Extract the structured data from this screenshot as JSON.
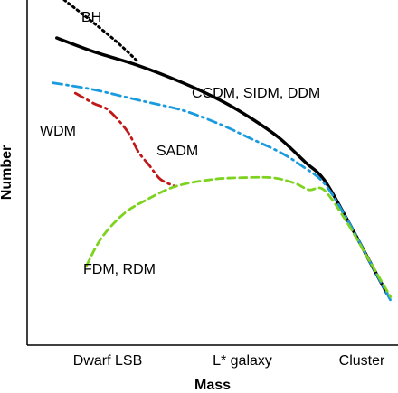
{
  "chart_data": {
    "type": "line",
    "title": "",
    "xlabel": "Mass",
    "ylabel": "Number",
    "x_tick_labels": [
      "Dwarf LSB",
      "L* galaxy",
      "Cluster"
    ],
    "xlim": [
      0,
      1
    ],
    "ylim": [
      0,
      1
    ],
    "grid": false,
    "series": [
      {
        "name": "BH",
        "style": "dotted",
        "color": "#000000",
        "x": [
          0.1,
          0.16,
          0.24,
          0.3
        ],
        "y": [
          1.0,
          0.95,
          0.88,
          0.82
        ]
      },
      {
        "name": "CCDM, SIDM, DDM",
        "style": "solid",
        "color": "#000000",
        "x": [
          0.08,
          0.18,
          0.3,
          0.42,
          0.52,
          0.6,
          0.68,
          0.75,
          0.8,
          0.86,
          0.92,
          0.97
        ],
        "y": [
          0.89,
          0.85,
          0.81,
          0.76,
          0.71,
          0.66,
          0.6,
          0.53,
          0.48,
          0.37,
          0.25,
          0.15
        ]
      },
      {
        "name": "SADM",
        "style": "dash-dot",
        "color": "#1a9be0",
        "x": [
          0.07,
          0.18,
          0.3,
          0.42,
          0.52,
          0.6,
          0.68,
          0.74,
          0.8,
          0.86,
          0.92,
          0.98
        ],
        "y": [
          0.76,
          0.74,
          0.71,
          0.68,
          0.64,
          0.6,
          0.56,
          0.52,
          0.47,
          0.37,
          0.25,
          0.13
        ]
      },
      {
        "name": "WDM",
        "style": "dash-dot",
        "color": "#c01818",
        "x": [
          0.13,
          0.18,
          0.22,
          0.27,
          0.3,
          0.33,
          0.36,
          0.4
        ],
        "y": [
          0.73,
          0.7,
          0.68,
          0.62,
          0.56,
          0.52,
          0.48,
          0.46
        ]
      },
      {
        "name": "FDM, RDM",
        "style": "dashed",
        "color": "#7ed321",
        "x": [
          0.16,
          0.2,
          0.26,
          0.32,
          0.4,
          0.5,
          0.58,
          0.66,
          0.72,
          0.76,
          0.8,
          0.86,
          0.92,
          0.98
        ],
        "y": [
          0.23,
          0.31,
          0.38,
          0.42,
          0.46,
          0.48,
          0.485,
          0.485,
          0.47,
          0.45,
          0.45,
          0.36,
          0.25,
          0.14
        ]
      }
    ],
    "annotations": [
      {
        "text": "BH",
        "series": "BH"
      },
      {
        "text": "CCDM, SIDM, DDM",
        "series": "CCDM, SIDM, DDM"
      },
      {
        "text": "WDM",
        "series": "WDM"
      },
      {
        "text": "SADM",
        "series": "SADM"
      },
      {
        "text": "FDM, RDM",
        "series": "FDM, RDM"
      }
    ]
  }
}
